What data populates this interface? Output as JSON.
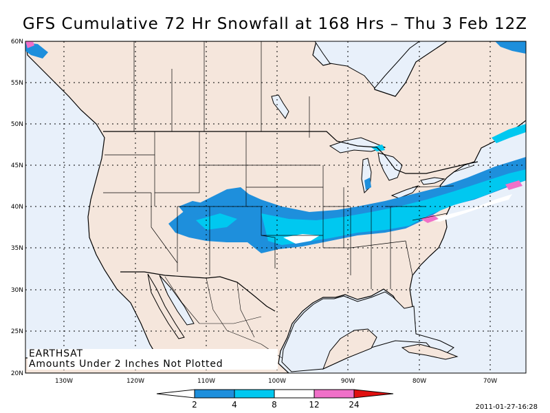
{
  "title": "GFS Cumulative 72 Hr Snowfall at 168 Hrs – Thu 3 Feb 12Z",
  "credit": {
    "source": "EARTHSAT",
    "note": "Amounts Under 2 Inches Not Plotted"
  },
  "timestamp": "2011-01-27-16:28",
  "axes": {
    "lat_labels": [
      {
        "text": "60N",
        "lat": 60
      },
      {
        "text": "55N",
        "lat": 55
      },
      {
        "text": "50N",
        "lat": 50
      },
      {
        "text": "45N",
        "lat": 45
      },
      {
        "text": "40N",
        "lat": 40
      },
      {
        "text": "35N",
        "lat": 35
      },
      {
        "text": "30N",
        "lat": 30
      },
      {
        "text": "25N",
        "lat": 25
      },
      {
        "text": "20N",
        "lat": 20
      }
    ],
    "lon_labels": [
      {
        "text": "130W",
        "lon": -130
      },
      {
        "text": "120W",
        "lon": -120
      },
      {
        "text": "110W",
        "lon": -110
      },
      {
        "text": "100W",
        "lon": -100
      },
      {
        "text": "90W",
        "lon": -90
      },
      {
        "text": "80W",
        "lon": -80
      },
      {
        "text": "70W",
        "lon": -70
      }
    ]
  },
  "legend": {
    "units": "inches",
    "bins": [
      {
        "from": 0,
        "to": 2,
        "color": "#ffffff"
      },
      {
        "from": 2,
        "to": 4,
        "color": "#1e8fdc"
      },
      {
        "from": 4,
        "to": 8,
        "color": "#00c8f0"
      },
      {
        "from": 8,
        "to": 12,
        "color": "#ffffff"
      },
      {
        "from": 12,
        "to": 24,
        "color": "#f070c8"
      },
      {
        "from": 24,
        "to": 30,
        "color": "#e01010"
      }
    ],
    "ticks": [
      "2",
      "4",
      "8",
      "12",
      "24"
    ]
  },
  "colors": {
    "land": "#f5e6dc",
    "water": "#e8f0fa",
    "boundary": "#000000"
  }
}
